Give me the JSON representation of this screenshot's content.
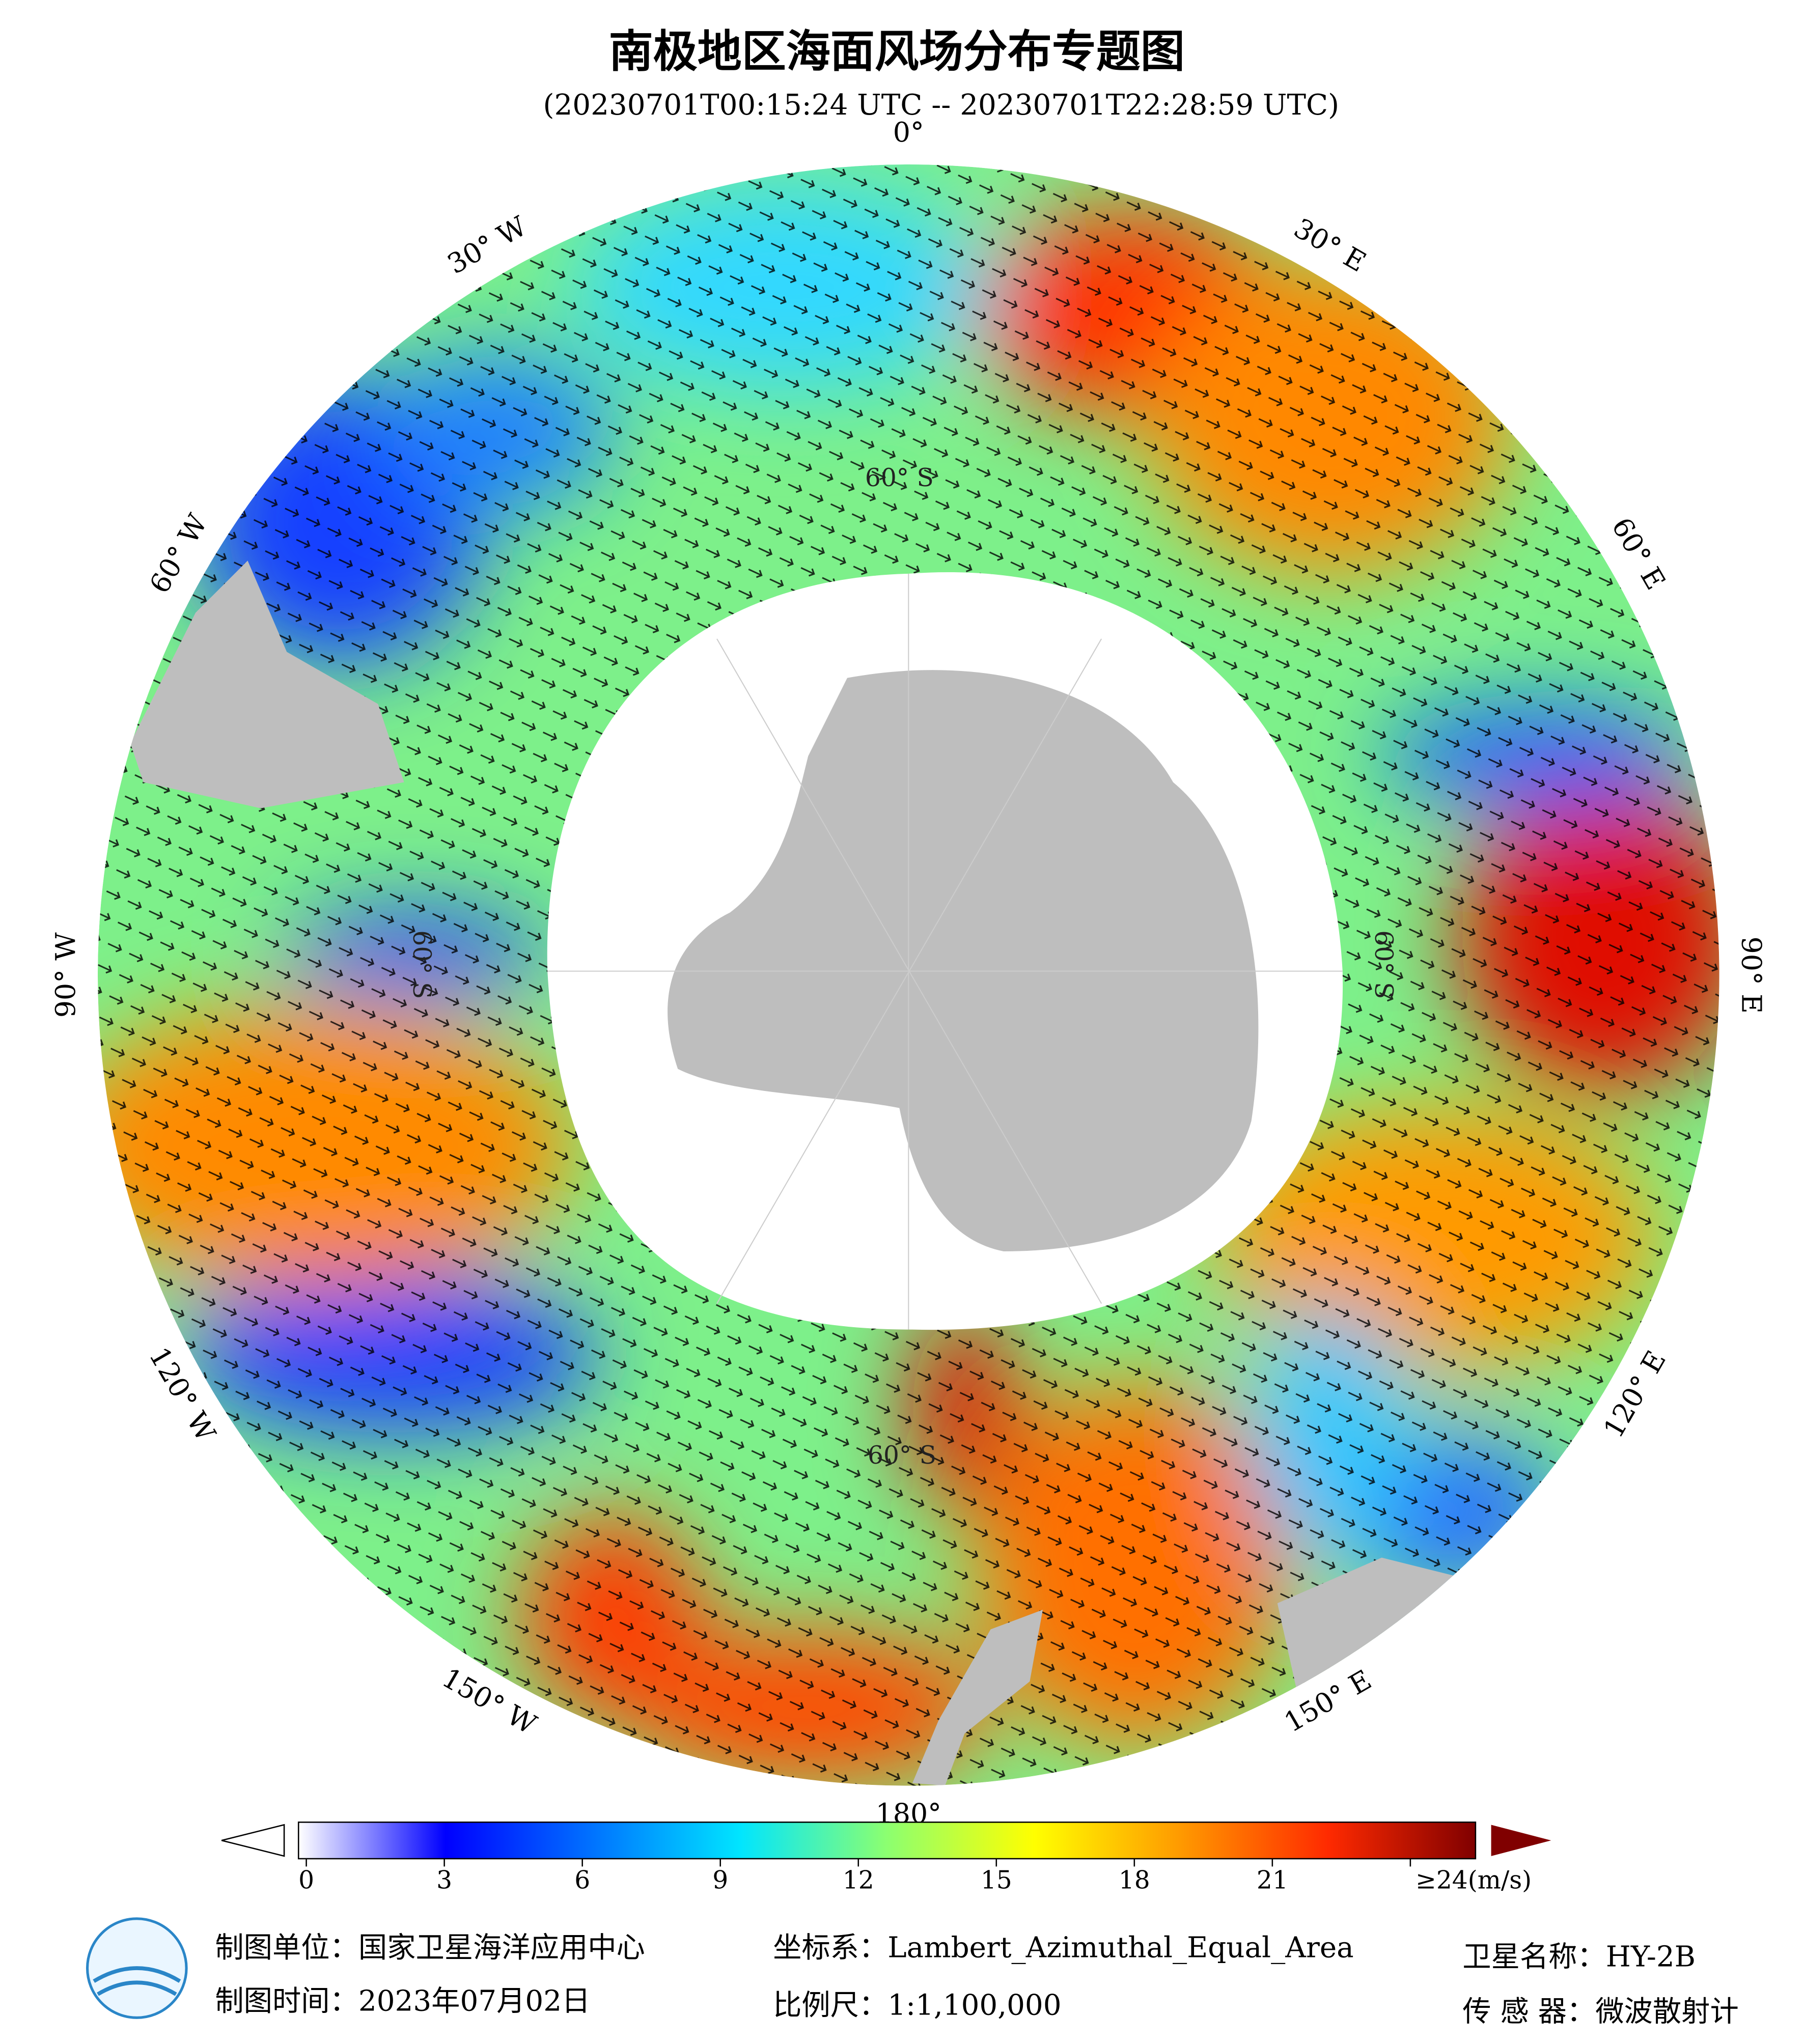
{
  "header": {
    "title": "南极地区海面风场分布专题图",
    "subtitle": "(20230701T00:15:24 UTC -- 20230701T22:28:59 UTC)"
  },
  "map": {
    "longitude_labels": [
      "0°",
      "30° E",
      "60° E",
      "90° E",
      "120° E",
      "150° E",
      "180°",
      "150° W",
      "120° W",
      "90° W",
      "60° W",
      "30° W"
    ],
    "latitude_labels": [
      "60° S",
      "60° S",
      "60° S",
      "60° S"
    ]
  },
  "colorbar": {
    "range": [
      0,
      24
    ],
    "ticks": [
      0,
      3,
      6,
      9,
      12,
      15,
      18,
      21,
      {
        "value": 24,
        "label": "≥24(m/s)"
      }
    ],
    "colors": [
      "#ffffff",
      "#0000ff",
      "#0073ff",
      "#00e5ff",
      "#8cff70",
      "#ffff00",
      "#ff9900",
      "#ff2a00",
      "#800000"
    ]
  },
  "footer": {
    "unit": "制图单位：国家卫星海洋应用中心",
    "date": "制图时间：2023年07月02日",
    "crs": "坐标系：Lambert_Azimuthal_Equal_Area",
    "scale": "比例尺：1:1,100,000",
    "satellite": "卫星名称：HY-2B",
    "sensor": "传 感 器：微波散射计"
  }
}
